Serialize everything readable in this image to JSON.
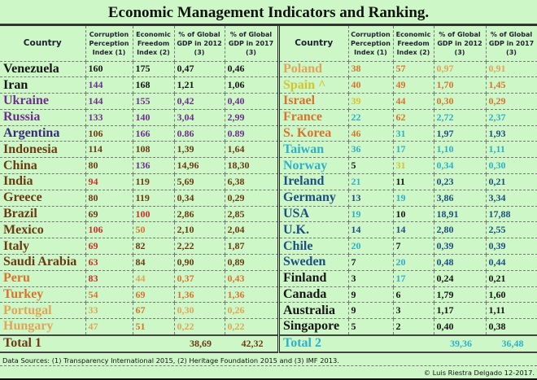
{
  "title": "Economic Management Indicators and Ranking.",
  "headers": [
    "Country",
    "Corruption Perception Index (1)",
    "Economic Freedom Index (2)",
    "% of Global GDP in 2012 (3)",
    "% of Global GDP in 2017 (3)"
  ],
  "colors": {
    "k": "#151515",
    "dp": "#3b2a78",
    "p": "#6e2f8c",
    "b": "#6b3a12",
    "r": "#c8302a",
    "o": "#d8732e",
    "lo": "#e2a457",
    "y": "#d6c32c",
    "t": "#2fb0c8",
    "n": "#1d4f82"
  },
  "left_rows": [
    {
      "c": [
        "Venezuela",
        "160",
        "175",
        "0,47",
        "0,46"
      ],
      "col": [
        "k",
        "k",
        "k",
        "k",
        "k"
      ]
    },
    {
      "c": [
        "Iran",
        "144",
        "168",
        "1,21",
        "1,06"
      ],
      "col": [
        "k",
        "p",
        "k",
        "k",
        "k"
      ]
    },
    {
      "c": [
        "Ukraine",
        "144",
        "155",
        "0,42",
        "0,40"
      ],
      "col": [
        "p",
        "p",
        "p",
        "p",
        "p"
      ]
    },
    {
      "c": [
        "Russia",
        "133",
        "140",
        "3,04",
        "2,99"
      ],
      "col": [
        "p",
        "p",
        "p",
        "p",
        "p"
      ]
    },
    {
      "c": [
        "Argentina",
        "106",
        "166",
        "0.86",
        "0.89"
      ],
      "col": [
        "dp",
        "b",
        "p",
        "p",
        "p"
      ]
    },
    {
      "c": [
        "Indonesia",
        "114",
        "108",
        "1,39",
        "1,64"
      ],
      "col": [
        "b",
        "b",
        "b",
        "b",
        "b"
      ]
    },
    {
      "c": [
        "China",
        "80",
        "136",
        "14,96",
        "18,30"
      ],
      "col": [
        "b",
        "b",
        "p",
        "b",
        "b"
      ]
    },
    {
      "c": [
        "India",
        "94",
        "119",
        "5,69",
        "6,38"
      ],
      "col": [
        "b",
        "r",
        "b",
        "b",
        "b"
      ]
    },
    {
      "c": [
        "Greece",
        "80",
        "119",
        "0,34",
        "0,29"
      ],
      "col": [
        "b",
        "b",
        "b",
        "b",
        "b"
      ]
    },
    {
      "c": [
        "Brazil",
        "69",
        "100",
        "2,86",
        "2,85"
      ],
      "col": [
        "b",
        "b",
        "r",
        "b",
        "b"
      ]
    },
    {
      "c": [
        "Mexico",
        "106",
        "50",
        "2,10",
        "2,04"
      ],
      "col": [
        "b",
        "r",
        "o",
        "b",
        "b"
      ]
    },
    {
      "c": [
        "Italy",
        "69",
        "82",
        "2,22",
        "1,87"
      ],
      "col": [
        "b",
        "r",
        "b",
        "b",
        "b"
      ]
    },
    {
      "c": [
        "Saudi Arabia",
        "63",
        "84",
        "0,90",
        "0,89"
      ],
      "col": [
        "b",
        "r",
        "b",
        "b",
        "b"
      ]
    },
    {
      "c": [
        "Peru",
        "83",
        "44",
        "0,37",
        "0,43"
      ],
      "col": [
        "o",
        "r",
        "lo",
        "o",
        "o"
      ]
    },
    {
      "c": [
        "Turkey",
        "54",
        "69",
        "1,36",
        "1,36"
      ],
      "col": [
        "o",
        "o",
        "o",
        "o",
        "o"
      ]
    },
    {
      "c": [
        "Portugal",
        "33",
        "67",
        "0,30",
        "0,26"
      ],
      "col": [
        "lo",
        "lo",
        "o",
        "lo",
        "lo"
      ]
    },
    {
      "c": [
        "Hungary",
        "47",
        "51",
        "0,22",
        "0,22"
      ],
      "col": [
        "lo",
        "lo",
        "o",
        "lo",
        "lo"
      ]
    }
  ],
  "right_rows": [
    {
      "c": [
        "Poland",
        "38",
        "57",
        "0,97",
        "0,91"
      ],
      "col": [
        "lo",
        "o",
        "o",
        "lo",
        "lo"
      ]
    },
    {
      "c": [
        "Spain ^",
        "40",
        "49",
        "1,70",
        "1,45"
      ],
      "col": [
        "y",
        "o",
        "o",
        "o",
        "o"
      ]
    },
    {
      "c": [
        "Israel",
        "39",
        "44",
        "0,30",
        "0,29"
      ],
      "col": [
        "o",
        "y",
        "o",
        "o",
        "o"
      ]
    },
    {
      "c": [
        "France",
        "22",
        "62",
        "2,72",
        "2,37"
      ],
      "col": [
        "o",
        "t",
        "o",
        "t",
        "t"
      ]
    },
    {
      "c": [
        "S. Korea",
        "46",
        "31",
        "1,97",
        "1,93"
      ],
      "col": [
        "o",
        "o",
        "t",
        "n",
        "n"
      ]
    },
    {
      "c": [
        "Taiwan",
        "36",
        "17",
        "1,10",
        "1,11"
      ],
      "col": [
        "t",
        "t",
        "t",
        "t",
        "t"
      ]
    },
    {
      "c": [
        "Norway",
        "5",
        "31",
        "0,34",
        "0,30"
      ],
      "col": [
        "t",
        "k",
        "y",
        "t",
        "t"
      ]
    },
    {
      "c": [
        "Ireland",
        "21",
        "11",
        "0,23",
        "0,21"
      ],
      "col": [
        "n",
        "t",
        "k",
        "n",
        "n"
      ]
    },
    {
      "c": [
        "Germany",
        "13",
        "19",
        "3,86",
        "3,34"
      ],
      "col": [
        "n",
        "n",
        "t",
        "n",
        "n"
      ]
    },
    {
      "c": [
        "USA",
        "19",
        "10",
        "18,91",
        "17,88"
      ],
      "col": [
        "n",
        "t",
        "k",
        "n",
        "n"
      ]
    },
    {
      "c": [
        "U.K.",
        "14",
        "14",
        "2,80",
        "2,55"
      ],
      "col": [
        "n",
        "n",
        "n",
        "n",
        "n"
      ]
    },
    {
      "c": [
        "Chile",
        "20",
        "7",
        "0,39",
        "0,39"
      ],
      "col": [
        "n",
        "t",
        "k",
        "n",
        "n"
      ]
    },
    {
      "c": [
        "Sweden",
        "7",
        "20",
        "0,48",
        "0,44"
      ],
      "col": [
        "n",
        "k",
        "t",
        "n",
        "n"
      ]
    },
    {
      "c": [
        "Finland",
        "3",
        "17",
        "0,24",
        "0,21"
      ],
      "col": [
        "k",
        "k",
        "t",
        "k",
        "k"
      ]
    },
    {
      "c": [
        "Canada",
        "9",
        "6",
        "1,79",
        "1,60"
      ],
      "col": [
        "k",
        "k",
        "k",
        "k",
        "k"
      ]
    },
    {
      "c": [
        "Australia",
        "9",
        "3",
        "1,17",
        "1,11"
      ],
      "col": [
        "k",
        "k",
        "k",
        "k",
        "k"
      ]
    },
    {
      "c": [
        "Singapore",
        "5",
        "2",
        "0,40",
        "0,38"
      ],
      "col": [
        "k",
        "k",
        "k",
        "k",
        "k"
      ]
    }
  ],
  "total1": {
    "label": "Total 1",
    "gdp2012": "38,69",
    "gdp2017": "42,32",
    "color": "b"
  },
  "total2": {
    "label": "Total 2",
    "gdp2012": "39,36",
    "gdp2017": "36,48",
    "color": "t"
  },
  "sources": "Data Sources: (1) Transparency International 2015, (2) Heritage Foundation 2015 and (3) IMF 2013.",
  "copyright": "© Luis Riestra Delgado 12-2017."
}
